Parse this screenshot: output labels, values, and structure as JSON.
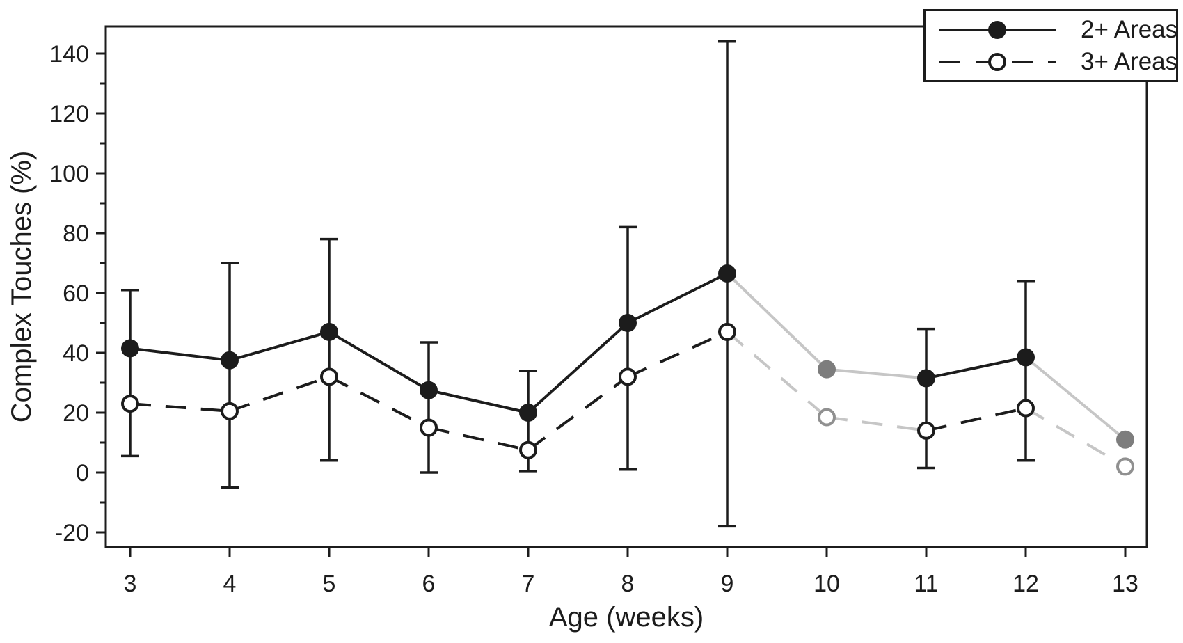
{
  "figure": {
    "background": "#ffffff"
  },
  "chart_data": {
    "type": "line",
    "title": "",
    "xlabel": "Age (weeks)",
    "ylabel": "Complex Touches (%)",
    "x": [
      3,
      4,
      5,
      6,
      7,
      8,
      9,
      10,
      11,
      12,
      13
    ],
    "x_tick_labels": [
      "3",
      "4",
      "5",
      "6",
      "7",
      "8",
      "9",
      "10",
      "11",
      "12",
      "13"
    ],
    "y_ticks": [
      -20,
      0,
      20,
      40,
      60,
      80,
      100,
      120,
      140
    ],
    "y_minor_ticks": [
      -10,
      10,
      30,
      50,
      70,
      90,
      110,
      130
    ],
    "ylim": [
      -25,
      149
    ],
    "xlim": [
      2.76,
      13.22
    ],
    "grid": false,
    "legend_position": "top-right",
    "series": [
      {
        "name": "2+ Areas",
        "line_style": "solid",
        "marker": "filled-circle",
        "values": [
          41.5,
          37.5,
          47,
          27.5,
          20,
          50,
          66.5,
          34.5,
          31.5,
          38.5,
          11
        ],
        "error_up": [
          61,
          70,
          78,
          43.5,
          34,
          82,
          144,
          null,
          48,
          64,
          null
        ],
        "gray_weeks": [
          10,
          13
        ]
      },
      {
        "name": "3+ Areas",
        "line_style": "dashed",
        "marker": "open-circle",
        "values": [
          23,
          20.5,
          32,
          15,
          7.5,
          32,
          47,
          18.5,
          14,
          21.5,
          2
        ],
        "error_down": [
          5.5,
          -5,
          4,
          0,
          0.5,
          1,
          -18,
          null,
          1.5,
          4,
          null
        ],
        "gray_weeks": [
          10,
          13
        ]
      }
    ],
    "gray_segments": [
      [
        9,
        10
      ],
      [
        10,
        11
      ],
      [
        12,
        13
      ]
    ],
    "colors": {
      "black": "#1c1c1c",
      "gray_marker": "#7d7d7d",
      "gray_line": "#c6c6c6",
      "gray_stroke": "#909090",
      "white": "#ffffff"
    }
  },
  "legend": {
    "items": [
      {
        "label": "2+ Areas"
      },
      {
        "label": "3+ Areas"
      }
    ]
  }
}
